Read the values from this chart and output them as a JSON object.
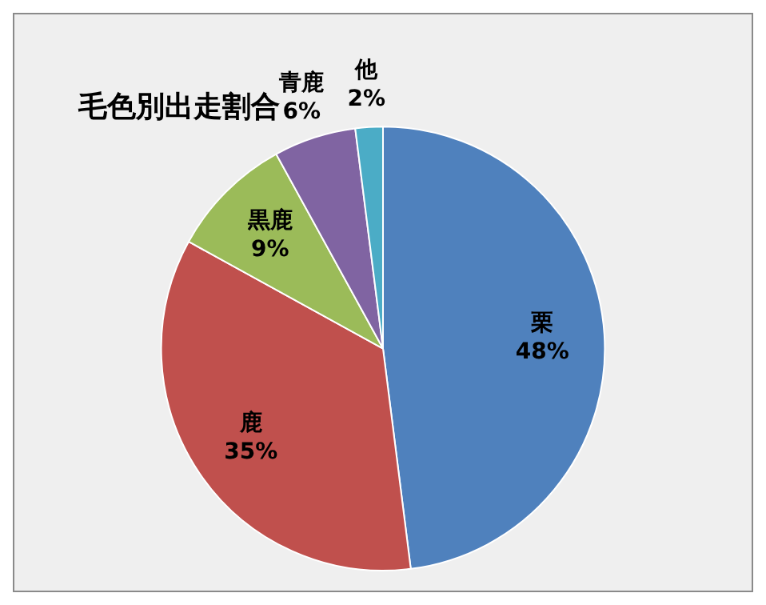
{
  "chart_data": {
    "type": "pie",
    "title": "毛色別出走割合",
    "categories": [
      "栗",
      "鹿",
      "黒鹿",
      "青鹿",
      "他"
    ],
    "values": [
      48,
      35,
      9,
      6,
      2
    ],
    "value_labels": [
      "48%",
      "35%",
      "9%",
      "6%",
      "2%"
    ],
    "colors": [
      "#4f81bd",
      "#c0504d",
      "#9bbb59",
      "#8064a2",
      "#4bacc6"
    ],
    "legend": false
  }
}
